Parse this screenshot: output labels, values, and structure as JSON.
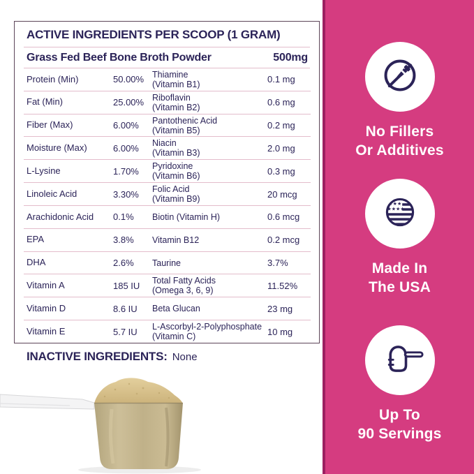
{
  "table": {
    "title": "ACTIVE INGREDIENTS PER SCOOP (1 GRAM)",
    "subheader": {
      "label": "Grass Fed Beef Bone Broth Powder",
      "value": "500mg"
    },
    "left_rows": [
      {
        "label": "Protein (Min)",
        "value": "50.00%"
      },
      {
        "label": "Fat (Min)",
        "value": "25.00%"
      },
      {
        "label": "Fiber (Max)",
        "value": "6.00%"
      },
      {
        "label": "Moisture (Max)",
        "value": "6.00%"
      },
      {
        "label": "L-Lysine",
        "value": "1.70%"
      },
      {
        "label": "Linoleic Acid",
        "value": "3.30%"
      },
      {
        "label": "Arachidonic Acid",
        "value": "0.1%"
      },
      {
        "label": "EPA",
        "value": "3.8%"
      },
      {
        "label": "DHA",
        "value": "2.6%"
      },
      {
        "label": "Vitamin A",
        "value": "185 IU"
      },
      {
        "label": "Vitamin D",
        "value": "8.6 IU"
      },
      {
        "label": "Vitamin E",
        "value": "5.7 IU"
      }
    ],
    "right_rows": [
      {
        "label": "Thiamine\n(Vitamin B1)",
        "value": "0.1 mg"
      },
      {
        "label": "Riboflavin\n(Vitamin B2)",
        "value": "0.6 mg"
      },
      {
        "label": "Pantothenic Acid\n(Vitamin B5)",
        "value": "0.2 mg"
      },
      {
        "label": "Niacin\n(Vitamin B3)",
        "value": "2.0 mg"
      },
      {
        "label": "Pyridoxine\n(Vitamin B6)",
        "value": "0.3 mg"
      },
      {
        "label": "Folic Acid\n(Vitamin B9)",
        "value": "20 mcg"
      },
      {
        "label": "Biotin (Vitamin H)",
        "value": "0.6 mcg"
      },
      {
        "label": "Vitamin B12",
        "value": "0.2 mcg"
      },
      {
        "label": "Taurine",
        "value": "3.7%"
      },
      {
        "label": "Total Fatty Acids\n(Omega 3, 6, 9)",
        "value": "11.52%"
      },
      {
        "label": "Beta Glucan",
        "value": "23 mg"
      },
      {
        "label": "L-Ascorbyl-2-Polyphosphate\n(Vitamin C)",
        "value": "10 mg"
      }
    ]
  },
  "inactive": {
    "label": "INACTIVE INGREDIENTS:",
    "value": "None"
  },
  "sidebar": {
    "badges": [
      {
        "icon": "no-additives-dropper-icon",
        "label": "No Fillers\nOr Additives"
      },
      {
        "icon": "usa-flag-icon",
        "label": "Made In\nThe USA"
      },
      {
        "icon": "scoop-icon",
        "label": "Up To\n90 Servings"
      }
    ]
  },
  "colors": {
    "accent_pink": "#D53C80",
    "accent_pink_dark": "#9C2060",
    "navy_text": "#2B2358",
    "table_border": "#5C4458",
    "row_separator": "#E3BCCB",
    "powder_tan": "#DCC693",
    "cup_khaki": "#BDAF86"
  }
}
